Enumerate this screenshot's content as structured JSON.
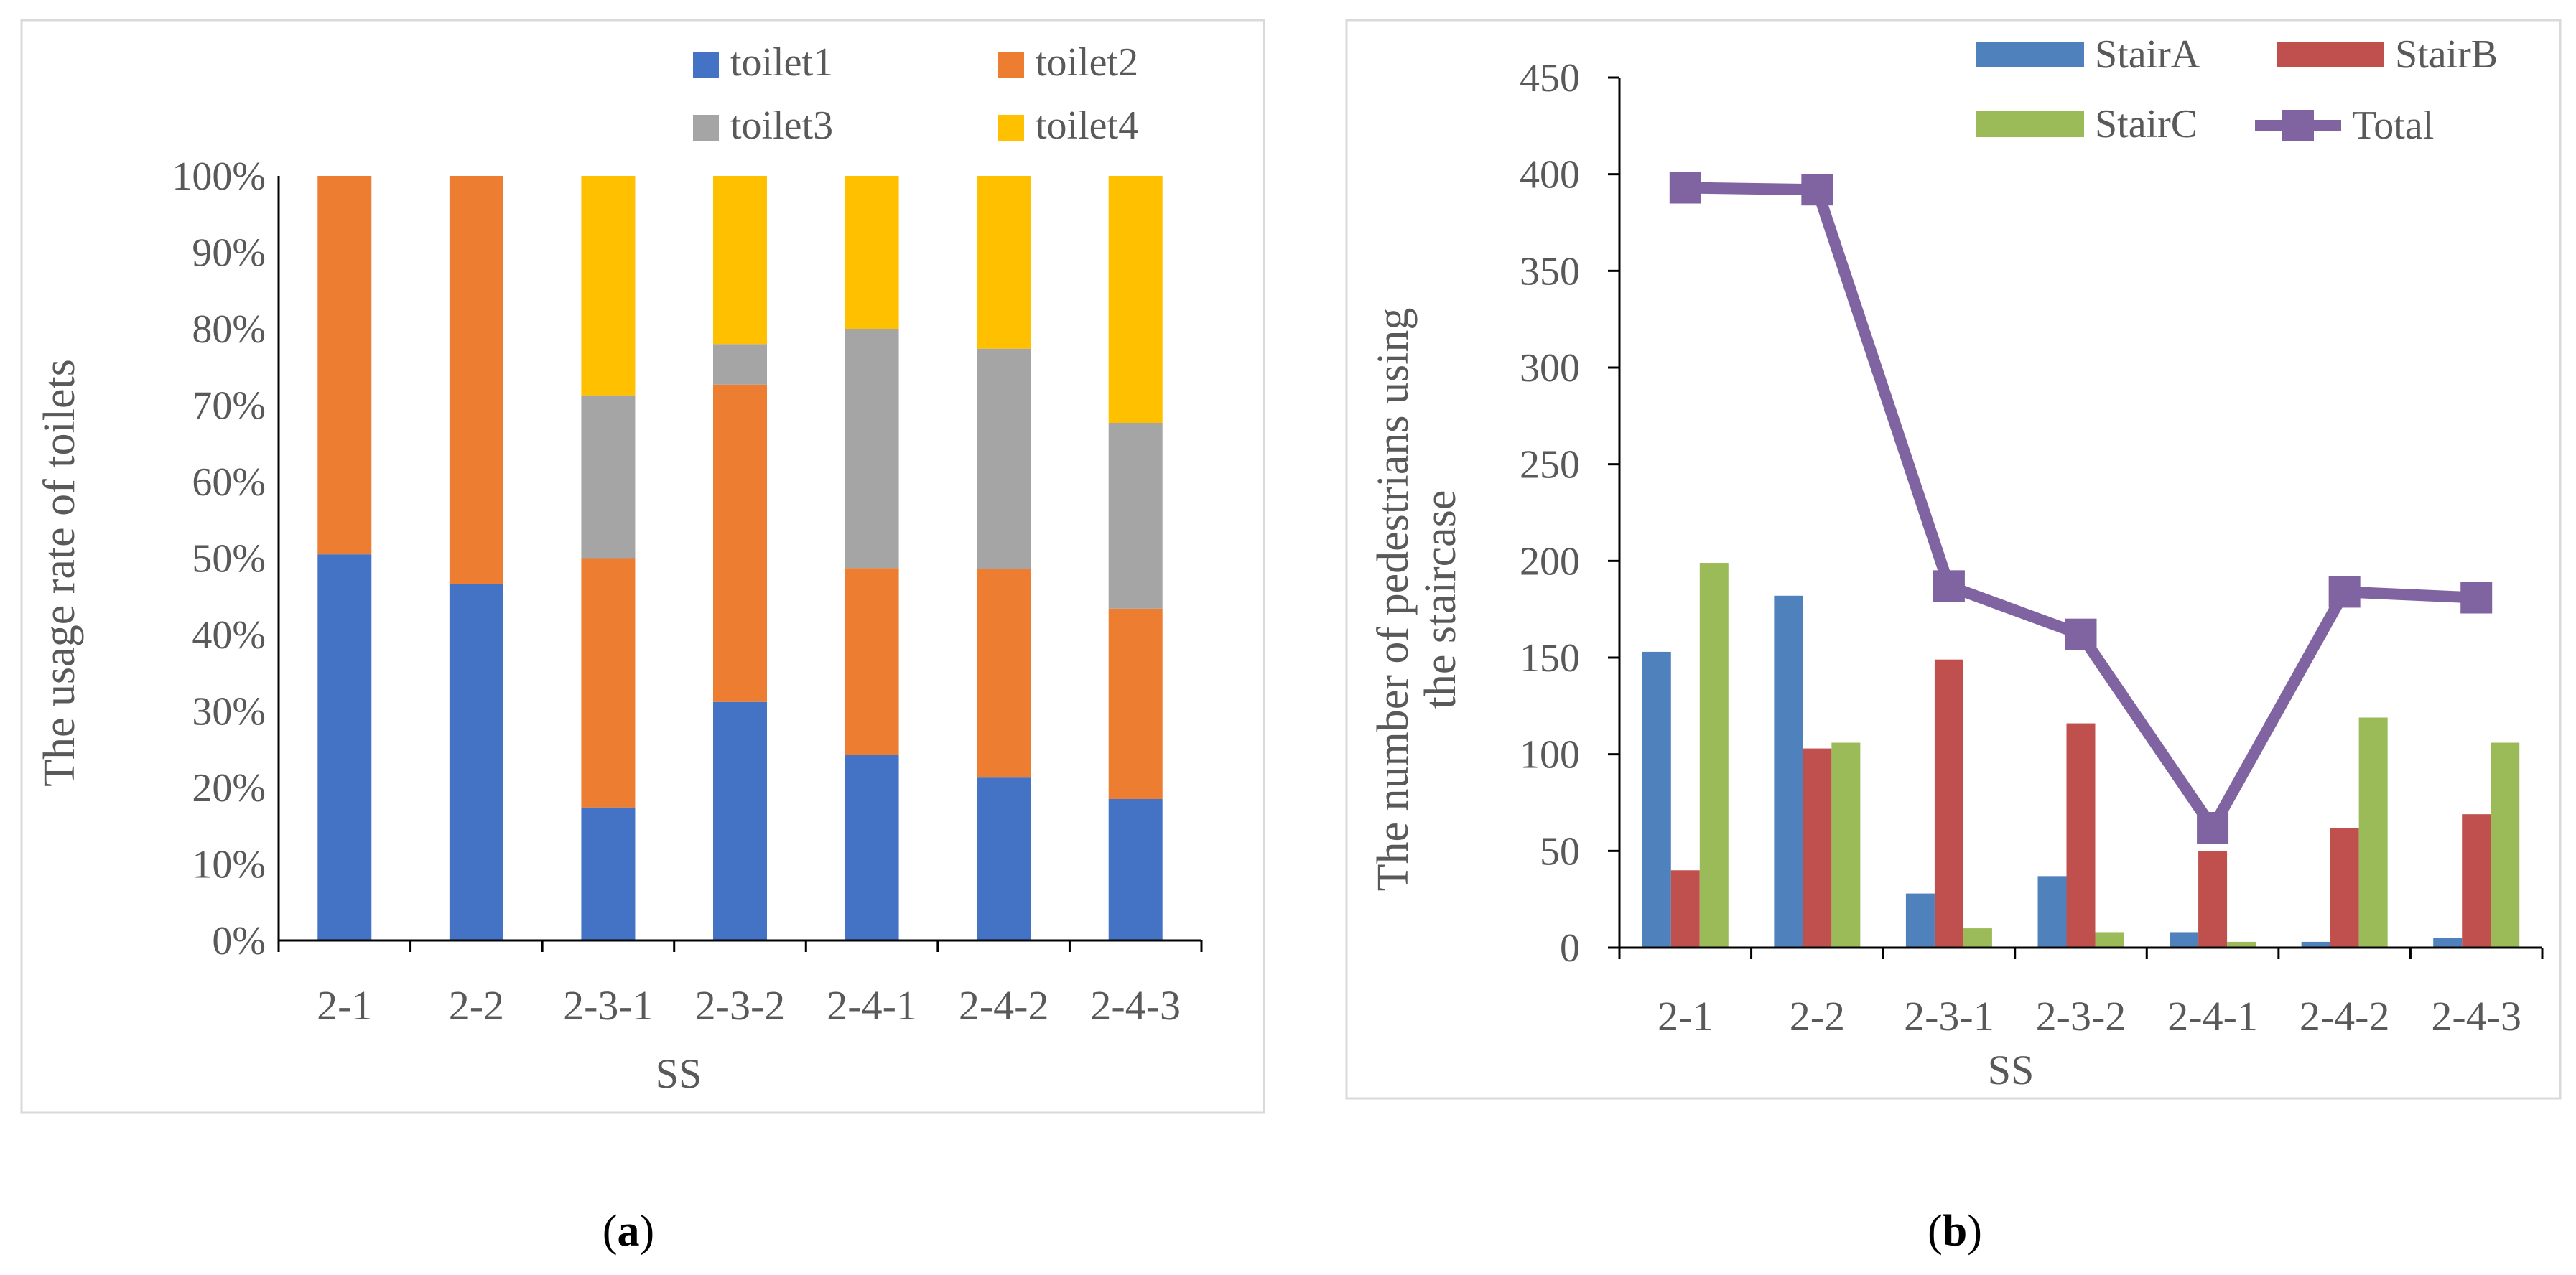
{
  "colors": {
    "toilet1": "#4472C4",
    "toilet2": "#ED7D31",
    "toilet3": "#A5A5A5",
    "toilet4": "#FFC000",
    "stairA": "#4F81BD",
    "stairB": "#C0504D",
    "stairC": "#9BBB59",
    "total": "#8064A2",
    "axis": "#000000",
    "frame": "#D9D9D9",
    "text": "#595959"
  },
  "panel_labels": {
    "a": "a",
    "b": "b"
  },
  "chart_data": [
    {
      "id": "a",
      "type": "bar",
      "stacked": "percent",
      "title": "",
      "xlabel": "SS",
      "ylabel": "The usage rate of toilets",
      "ylim": [
        0,
        100
      ],
      "yticks": [
        "0%",
        "10%",
        "20%",
        "30%",
        "40%",
        "50%",
        "60%",
        "70%",
        "80%",
        "90%",
        "100%"
      ],
      "categories": [
        "2-1",
        "2-2",
        "2-3-1",
        "2-3-2",
        "2-4-1",
        "2-4-2",
        "2-4-3"
      ],
      "series": [
        {
          "name": "toilet1",
          "values": [
            50.5,
            46.6,
            17.4,
            31.2,
            24.3,
            21.3,
            18.5
          ]
        },
        {
          "name": "toilet2",
          "values": [
            49.5,
            53.4,
            32.6,
            41.5,
            24.4,
            27.3,
            24.9
          ]
        },
        {
          "name": "toilet3",
          "values": [
            0,
            0,
            21.3,
            5.3,
            31.3,
            28.8,
            24.3
          ]
        },
        {
          "name": "toilet4",
          "values": [
            0,
            0,
            28.7,
            22.0,
            20.0,
            22.6,
            32.3
          ]
        }
      ],
      "legend_position": "top"
    },
    {
      "id": "b",
      "type": "bar",
      "title": "",
      "xlabel": "SS",
      "ylabel_line1": "The number of pedestrians using",
      "ylabel_line2": "the staircase",
      "ylim": [
        0,
        450
      ],
      "yticks": [
        "0",
        "50",
        "100",
        "150",
        "200",
        "250",
        "300",
        "350",
        "400",
        "450"
      ],
      "categories": [
        "2-1",
        "2-2",
        "2-3-1",
        "2-3-2",
        "2-4-1",
        "2-4-2",
        "2-4-3"
      ],
      "series": [
        {
          "name": "StairA",
          "type": "bar",
          "values": [
            153,
            182,
            28,
            37,
            8,
            3,
            5
          ]
        },
        {
          "name": "StairB",
          "type": "bar",
          "values": [
            40,
            103,
            149,
            116,
            50,
            62,
            69
          ]
        },
        {
          "name": "StairC",
          "type": "bar",
          "values": [
            199,
            106,
            10,
            8,
            3,
            119,
            106
          ]
        },
        {
          "name": "Total",
          "type": "line",
          "values": [
            393,
            392,
            187,
            162,
            62,
            184,
            181
          ]
        }
      ],
      "legend_position": "top-right"
    }
  ]
}
